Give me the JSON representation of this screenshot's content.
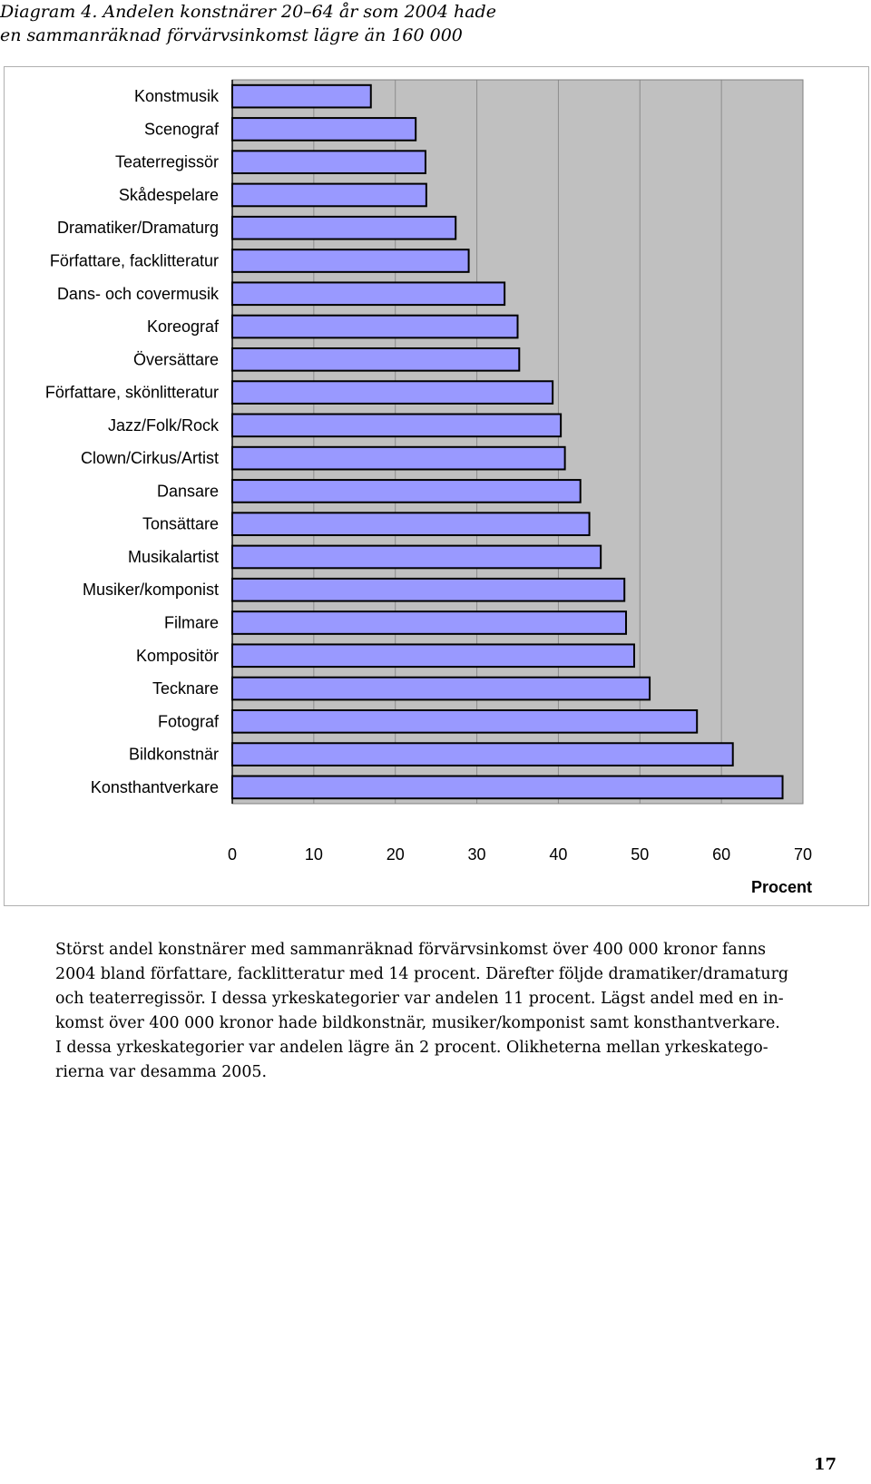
{
  "caption": {
    "line1": "Diagram 4. Andelen konstnärer 20–64 år som 2004 hade",
    "line2": "en sammanräknad förvärvsinkomst lägre än 160 000"
  },
  "chart_data": {
    "type": "bar",
    "orientation": "horizontal",
    "categories": [
      "Konstmusik",
      "Scenograf",
      "Teaterregissör",
      "Skådespelare",
      "Dramatiker/Dramaturg",
      "Författare, facklitteratur",
      "Dans- och covermusik",
      "Koreograf",
      "Översättare",
      "Författare, skönlitteratur",
      "Jazz/Folk/Rock",
      "Clown/Cirkus/Artist",
      "Dansare",
      "Tonsättare",
      "Musikalartist",
      "Musiker/komponist",
      "Filmare",
      "Kompositör",
      "Tecknare",
      "Fotograf",
      "Bildkonstnär",
      "Konsthantverkare"
    ],
    "values": [
      17,
      22.5,
      23.7,
      23.8,
      27.4,
      29,
      33.4,
      35,
      35.2,
      39.3,
      40.3,
      40.8,
      42.7,
      43.8,
      45.2,
      48.1,
      48.3,
      49.3,
      51.2,
      57,
      61.4,
      67.5
    ],
    "xlabel": "Procent",
    "xlim": [
      0,
      70
    ],
    "xticks": [
      "0",
      "10",
      "20",
      "30",
      "40",
      "50",
      "60",
      "70"
    ],
    "grid": true,
    "colors": {
      "bar": "#9999ff",
      "bar_outline": "#000000",
      "plot_background": "#c0c0c0",
      "gridline": "#8c8c8c"
    }
  },
  "body_text": [
    "Störst andel konstnärer med sammanräknad förvärvsinkomst över 400 000 kronor fanns",
    "2004 bland författare, facklitteratur med 14 procent. Därefter följde dramatiker/dramaturg",
    "och teaterregissör. I dessa yrkeskategorier var andelen 11 procent. Lägst andel med en in-",
    "komst över 400 000 kronor hade bildkonstnär, musiker/komponist samt konsthantverkare.",
    "I dessa yrkeskategorier var andelen lägre än 2 procent. Olikheterna mellan yrkeskatego-",
    "rierna var desamma 2005."
  ],
  "page_number": "17"
}
